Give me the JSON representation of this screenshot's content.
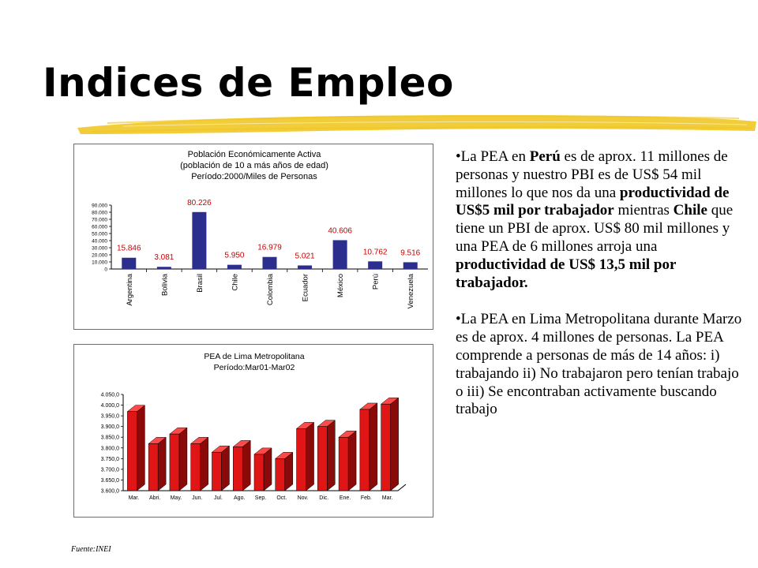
{
  "slide": {
    "title": "Indices de Empleo",
    "source": "Fuente:INEI"
  },
  "colors": {
    "bar_blue": "#2b2e8c",
    "bar_red_front": "#e01515",
    "bar_red_side": "#8a0a0a",
    "label_red": "#cc0000",
    "brush_yellow": "#f0c419"
  },
  "chart_data": [
    {
      "type": "bar",
      "title": "Población Económicamente Activa",
      "subtitle": "(población de 10 a más años de edad)",
      "subtitle2": "Período:2000/Miles de Personas",
      "categories": [
        "Argentina",
        "Bolivia",
        "Brasil",
        "Chile",
        "Colombia",
        "Ecuador",
        "México",
        "Perú",
        "Venezuela"
      ],
      "values": [
        15846,
        3081,
        80226,
        5950,
        16979,
        5021,
        40606,
        10762,
        9516
      ],
      "data_labels": [
        "15.846",
        "3.081",
        "80.226",
        "5.950",
        "16.979",
        "5.021",
        "40.606",
        "10.762",
        "9.516"
      ],
      "ylim": [
        0,
        90000
      ],
      "yticks": [
        0,
        10000,
        20000,
        30000,
        40000,
        50000,
        60000,
        70000,
        80000,
        90000
      ],
      "ytick_labels": [
        "0",
        "10.000",
        "20.000",
        "30.000",
        "40.000",
        "50.000",
        "60.000",
        "70.000",
        "80.000",
        "90.000"
      ],
      "grid": false
    },
    {
      "type": "bar",
      "title": "PEA de Lima Metropolitana",
      "subtitle": "Período:Mar01-Mar02",
      "categories": [
        "Mar.",
        "Abri.",
        "May.",
        "Jun.",
        "Jul.",
        "Ago.",
        "Sep.",
        "Oct.",
        "Nov.",
        "Dic.",
        "Ene.",
        "Feb.",
        "Mar."
      ],
      "values": [
        3970,
        3820,
        3865,
        3820,
        3780,
        3805,
        3770,
        3750,
        3890,
        3900,
        3850,
        3980,
        4005
      ],
      "ylim": [
        3600,
        4050
      ],
      "yticks": [
        3600,
        3650,
        3700,
        3750,
        3800,
        3850,
        3900,
        3950,
        4000,
        4050
      ],
      "ytick_labels": [
        "3.600,0",
        "3.650,0",
        "3.700,0",
        "3.750,0",
        "3.800,0",
        "3.850,0",
        "3.900,0",
        "3.950,0",
        "4.000,0",
        "4.050,0"
      ],
      "grid": false,
      "style": "3d"
    }
  ],
  "bullets": [
    [
      {
        "t": "•La PEA en ",
        "b": false
      },
      {
        "t": "Perú",
        "b": true
      },
      {
        "t": " es de aprox. 11 millones de personas y nuestro PBI es de US$ 54 mil millones lo que nos da una ",
        "b": false
      },
      {
        "t": "productividad de US$5 mil por trabajador",
        "b": true
      },
      {
        "t": " mientras ",
        "b": false
      },
      {
        "t": "Chile",
        "b": true
      },
      {
        "t": " que tiene un PBI de aprox. US$ 80 mil millones y una PEA de 6 millones arroja una ",
        "b": false
      },
      {
        "t": "productividad de US$ 13,5 mil por trabajador.",
        "b": true
      }
    ],
    [
      {
        "t": "•La PEA en Lima Metropolitana durante Marzo es de aprox. 4 millones de personas. La PEA comprende a personas de más de 14 años: i) trabajando ii) No trabajaron pero tenían trabajo o iii) Se encontraban activamente buscando trabajo",
        "b": false
      }
    ]
  ]
}
